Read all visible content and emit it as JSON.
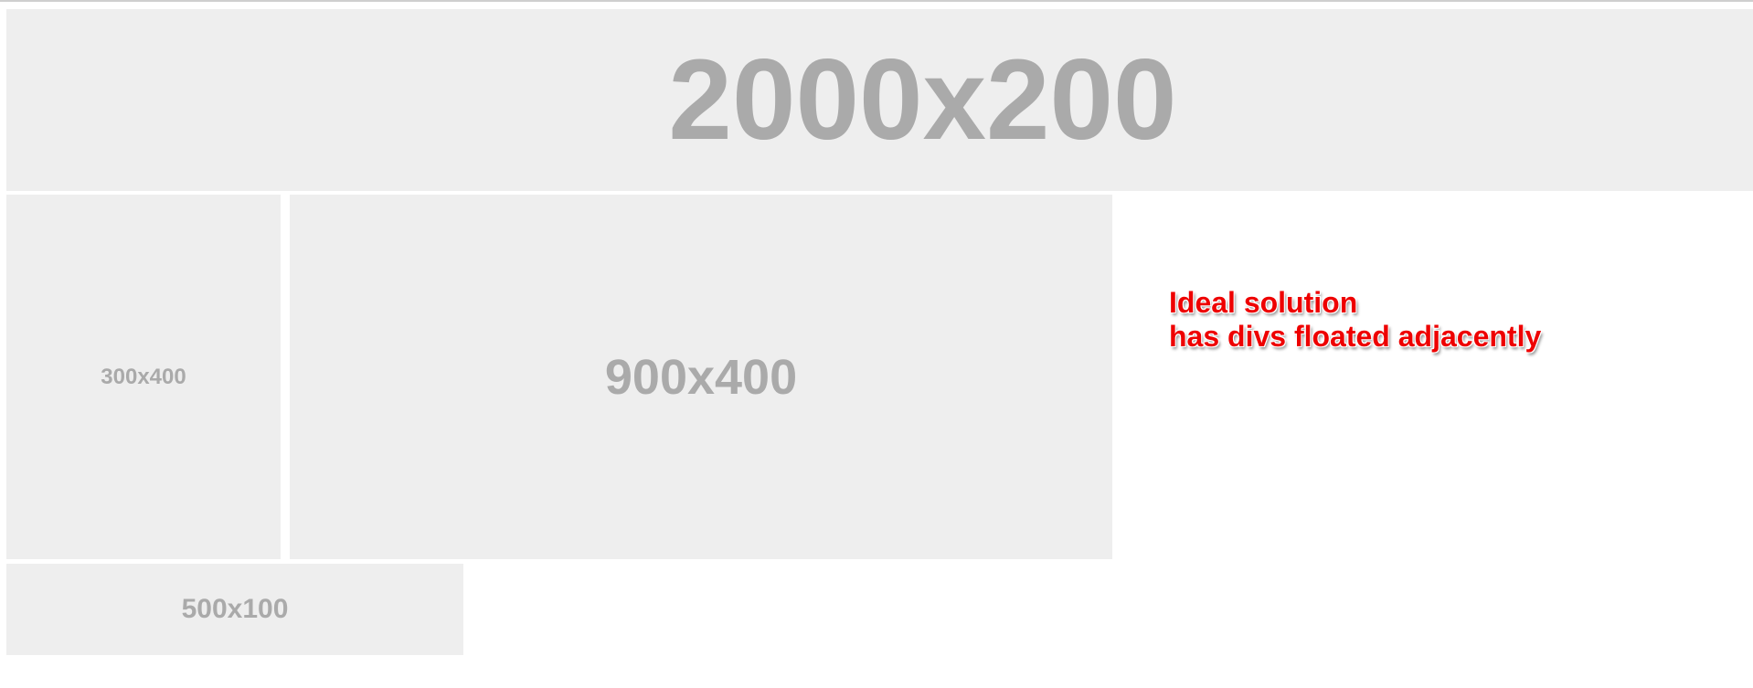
{
  "placeholders": {
    "top": "2000x200",
    "left": "300x400",
    "middle": "900x400",
    "bottom": "500x100"
  },
  "annotation": {
    "line1": "Ideal solution",
    "line2": "has divs floated adjacently"
  },
  "colors": {
    "placeholder_bg": "#eeeeee",
    "placeholder_text": "#aaaaaa",
    "annotation_text": "#ee0000"
  }
}
